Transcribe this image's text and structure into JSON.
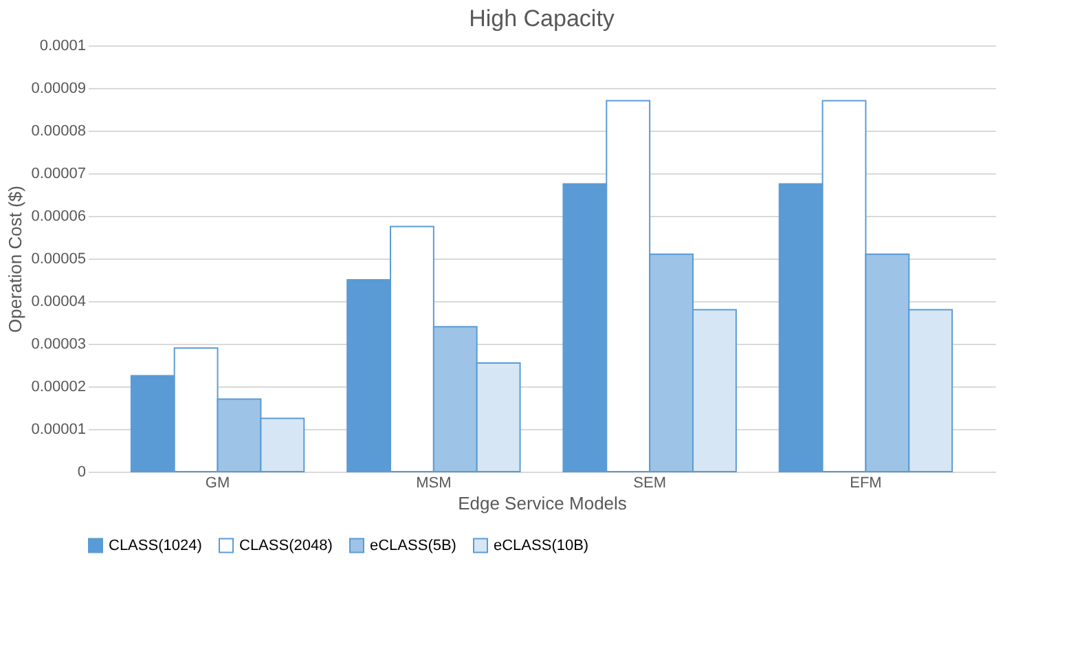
{
  "chart_data": {
    "type": "bar",
    "title": "High Capacity",
    "xlabel": "Edge Service Models",
    "ylabel": "Operation Cost ($)",
    "categories": [
      "GM",
      "MSM",
      "SEM",
      "EFM"
    ],
    "series": [
      {
        "name": "CLASS(1024)",
        "color": "#5b9bd5",
        "values": [
          2.25e-05,
          4.5e-05,
          6.75e-05,
          6.75e-05
        ]
      },
      {
        "name": "CLASS(2048)",
        "color": "#ffffff",
        "values": [
          2.9e-05,
          5.75e-05,
          8.7e-05,
          8.7e-05
        ]
      },
      {
        "name": "eCLASS(5B)",
        "color": "#9dc3e6",
        "values": [
          1.7e-05,
          3.4e-05,
          5.1e-05,
          5.1e-05
        ]
      },
      {
        "name": "eCLASS(10B)",
        "color": "#d6e6f5",
        "values": [
          1.25e-05,
          2.55e-05,
          3.8e-05,
          3.8e-05
        ]
      }
    ],
    "ylim": [
      0,
      0.0001
    ],
    "yticks": [
      0,
      {
        "value": 1e-05,
        "label": "0.00001"
      },
      {
        "value": 2e-05,
        "label": "0.00002"
      },
      {
        "value": 3e-05,
        "label": "0.00003"
      },
      {
        "value": 4e-05,
        "label": "0.00004"
      },
      {
        "value": 5e-05,
        "label": "0.00005"
      },
      {
        "value": 6e-05,
        "label": "0.00006"
      },
      {
        "value": 7e-05,
        "label": "0.00007"
      },
      {
        "value": 8e-05,
        "label": "0.00008"
      },
      {
        "value": 9e-05,
        "label": "0.00009"
      },
      {
        "value": 0.0001,
        "label": "0.0001"
      }
    ],
    "grid": "y",
    "legend": "bottom"
  }
}
